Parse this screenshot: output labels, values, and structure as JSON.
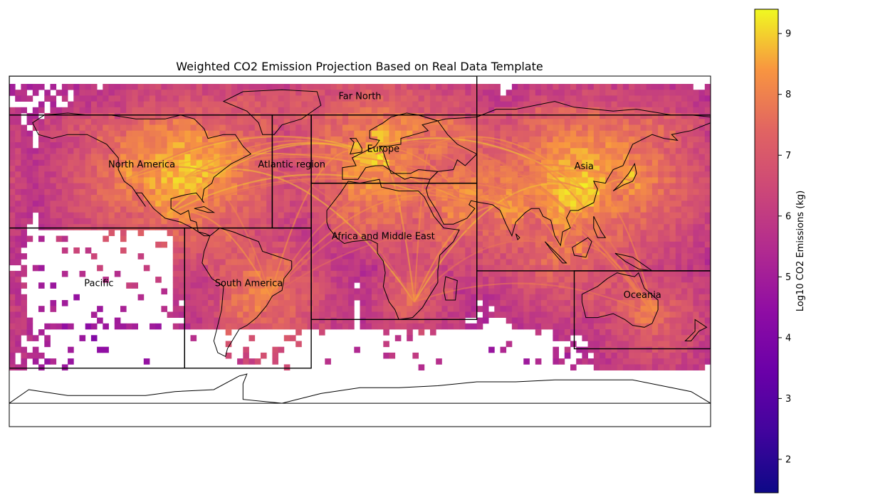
{
  "chart_data": {
    "type": "heatmap",
    "title": "Weighted CO2 Emission Projection Based on Real Data Template",
    "projection": "plate-carree",
    "lon_range": [
      -180,
      180
    ],
    "lat_range": [
      -90,
      90
    ],
    "colormap": "plasma",
    "colorbar": {
      "label": "Log10 CO2 Emissions (kg)",
      "range": [
        1.45,
        9.4
      ],
      "ticks": [
        2,
        3,
        4,
        5,
        6,
        7,
        8,
        9
      ],
      "placement": "right"
    },
    "region_boxes": [
      {
        "name": "Far North",
        "label_lon": 0,
        "label_lat": 80,
        "lon": [
          -180,
          60
        ],
        "lat": [
          70,
          90
        ]
      },
      {
        "name": "North America",
        "label_lon": -112,
        "label_lat": 45,
        "lon": [
          -180,
          -45
        ],
        "lat": [
          12,
          70
        ]
      },
      {
        "name": "Atlantic region",
        "label_lon": -35,
        "label_lat": 45,
        "lon": [
          -45,
          -25
        ],
        "lat": [
          12,
          70
        ]
      },
      {
        "name": "Europe",
        "label_lon": 12,
        "label_lat": 53,
        "lon": [
          -25,
          60
        ],
        "lat": [
          35,
          70
        ]
      },
      {
        "name": "Africa and Middle East",
        "label_lon": 12,
        "label_lat": 8,
        "lon": [
          -25,
          60
        ],
        "lat": [
          -35,
          35
        ]
      },
      {
        "name": "Asia",
        "label_lon": 115,
        "label_lat": 44,
        "lon": [
          60,
          180
        ],
        "lat": [
          -10,
          70
        ]
      },
      {
        "name": "Pacific",
        "label_lon": -134,
        "label_lat": -16,
        "lon": [
          -180,
          -90
        ],
        "lat": [
          -60,
          12
        ]
      },
      {
        "name": "South America",
        "label_lon": -57,
        "label_lat": -16,
        "lon": [
          -90,
          -25
        ],
        "lat": [
          -60,
          12
        ]
      },
      {
        "name": "Oceania",
        "label_lon": 145,
        "label_lat": -22,
        "lon": [
          110,
          180
        ],
        "lat": [
          -50,
          -10
        ]
      }
    ],
    "hotspots": [
      {
        "lon": -90,
        "lat": 38,
        "value": 9.1
      },
      {
        "lon": -75,
        "lat": 40,
        "value": 8.9
      },
      {
        "lon": -120,
        "lat": 37,
        "value": 8.5
      },
      {
        "lon": 8,
        "lat": 50,
        "value": 9.0
      },
      {
        "lon": 0,
        "lat": 51,
        "value": 8.8
      },
      {
        "lon": 115,
        "lat": 32,
        "value": 9.2
      },
      {
        "lon": 140,
        "lat": 36,
        "value": 8.8
      },
      {
        "lon": 103,
        "lat": 2,
        "value": 8.4
      },
      {
        "lon": 77,
        "lat": 22,
        "value": 8.5
      },
      {
        "lon": 55,
        "lat": 25,
        "value": 8.4
      },
      {
        "lon": 37,
        "lat": 55,
        "value": 8.3
      },
      {
        "lon": -46,
        "lat": -23,
        "value": 8.3
      },
      {
        "lon": 151,
        "lat": -33,
        "value": 8.0
      },
      {
        "lon": 28,
        "lat": -26,
        "value": 7.6
      },
      {
        "lon": 31,
        "lat": 30,
        "value": 7.8
      },
      {
        "lon": -99,
        "lat": 19,
        "value": 8.0
      }
    ]
  }
}
